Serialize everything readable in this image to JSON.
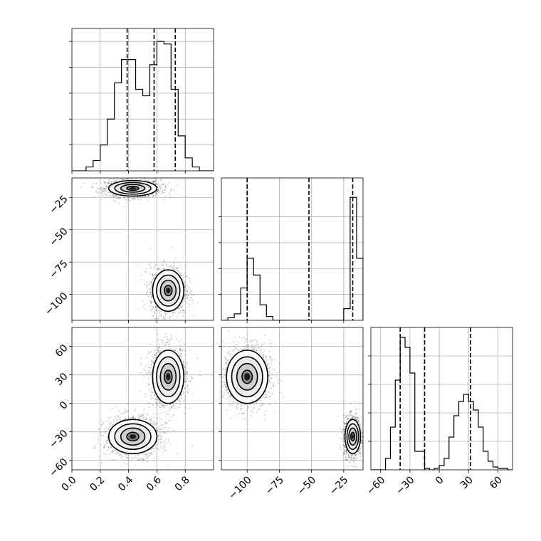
{
  "chart_data": {
    "type": "corner",
    "grid": true,
    "panels": [
      {
        "id": "hist-x",
        "type": "histogram",
        "bin_edges": [
          0.0,
          0.05,
          0.1,
          0.15,
          0.2,
          0.25,
          0.3,
          0.35,
          0.4,
          0.45,
          0.5,
          0.55,
          0.6,
          0.65,
          0.7,
          0.75,
          0.8,
          0.85,
          0.9,
          0.95,
          1.0
        ],
        "counts": [
          0,
          0,
          0.3,
          0.8,
          2,
          4,
          6.8,
          8.6,
          8.6,
          6.3,
          5.8,
          8.2,
          10,
          9.8,
          6.3,
          2.7,
          1,
          0.3,
          0,
          0
        ],
        "ylim": [
          0,
          11
        ],
        "xlim": [
          0,
          1
        ],
        "quantiles": [
          0.39,
          0.58,
          0.73
        ],
        "xticks": [
          0.0,
          0.2,
          0.4,
          0.6,
          0.8
        ],
        "yticks": [
          2,
          4,
          6,
          8,
          10
        ]
      },
      {
        "id": "scatter-x-y",
        "type": "density-contour",
        "xlim": [
          0,
          1
        ],
        "ylim": [
          -120,
          -10
        ],
        "xticks": [
          0.0,
          0.2,
          0.4,
          0.6,
          0.8
        ],
        "yticks": [
          -25,
          -50,
          -75,
          -100
        ],
        "ytick_labels": [
          "−25",
          "−50",
          "−75",
          "−100"
        ],
        "clusters": [
          {
            "cx": 0.43,
            "cy": -18,
            "sx": 0.085,
            "sy": 3
          },
          {
            "cx": 0.68,
            "cy": -97,
            "sx": 0.055,
            "sy": 8
          }
        ]
      },
      {
        "id": "hist-y",
        "type": "histogram",
        "bin_edges": [
          -120,
          -115,
          -110,
          -105,
          -100,
          -95,
          -90,
          -85,
          -80,
          -75,
          -70,
          -65,
          -60,
          -55,
          -50,
          -45,
          -40,
          -35,
          -30,
          -25,
          -20,
          -15,
          -10
        ],
        "counts": [
          0,
          0.2,
          0.5,
          2.5,
          4.8,
          3.5,
          1.2,
          0.3,
          0,
          0,
          0,
          0,
          0,
          0,
          0,
          0,
          0,
          0,
          0,
          0.9,
          9.5,
          4.8
        ],
        "ylim": [
          0,
          11
        ],
        "xlim": [
          -120,
          -10
        ],
        "quantiles": [
          -100,
          -52,
          -18
        ],
        "xticks": [
          -100,
          -75,
          -50,
          -25
        ],
        "yticks": [
          2,
          4,
          6,
          8
        ]
      },
      {
        "id": "scatter-x-z",
        "type": "density-contour",
        "xlim": [
          0,
          1
        ],
        "ylim": [
          -70,
          80
        ],
        "xticks": [
          0.0,
          0.2,
          0.4,
          0.6,
          0.8
        ],
        "xtick_labels": [
          "0.0",
          "0.2",
          "0.4",
          "0.6",
          "0.8"
        ],
        "yticks": [
          60,
          30,
          0,
          -30,
          -60
        ],
        "ytick_labels": [
          "60",
          "30",
          "0",
          "−30",
          "−60"
        ],
        "clusters": [
          {
            "cx": 0.43,
            "cy": -35,
            "sx": 0.085,
            "sy": 9
          },
          {
            "cx": 0.68,
            "cy": 28,
            "sx": 0.055,
            "sy": 14
          }
        ]
      },
      {
        "id": "scatter-y-z",
        "type": "density-contour",
        "xlim": [
          -120,
          -10
        ],
        "ylim": [
          -70,
          80
        ],
        "xticks": [
          -100,
          -75,
          -50,
          -25
        ],
        "xtick_labels": [
          "−100",
          "−75",
          "−50",
          "−25"
        ],
        "yticks": [
          60,
          30,
          0,
          -30,
          -60
        ],
        "clusters": [
          {
            "cx": -100,
            "cy": 28,
            "sx": 8,
            "sy": 14
          },
          {
            "cx": -18,
            "cy": -35,
            "sx": 3,
            "sy": 9
          }
        ]
      },
      {
        "id": "hist-z",
        "type": "histogram",
        "bin_edges": [
          -70,
          -65,
          -60,
          -55,
          -50,
          -45,
          -40,
          -35,
          -30,
          -25,
          -20,
          -15,
          -10,
          -5,
          0,
          5,
          10,
          15,
          20,
          25,
          30,
          35,
          40,
          45,
          50,
          55,
          60,
          65,
          70,
          75
        ],
        "counts": [
          0,
          0,
          0,
          0.8,
          3,
          6.3,
          9.3,
          8.6,
          6.8,
          1.3,
          1.3,
          0.1,
          0,
          0.1,
          0.3,
          0.8,
          2.3,
          3.8,
          4.8,
          5.3,
          4.8,
          4.2,
          3,
          1.3,
          0.6,
          0.2,
          0.1,
          0.1,
          0
        ],
        "ylim": [
          0,
          10
        ],
        "xlim": [
          -70,
          75
        ],
        "quantiles": [
          -40,
          -15,
          32
        ],
        "xticks": [
          -60,
          -30,
          0,
          30,
          60
        ],
        "xtick_labels": [
          "−60",
          "−30",
          "0",
          "30",
          "60"
        ],
        "yticks": [
          2,
          4,
          6,
          8
        ]
      }
    ]
  }
}
